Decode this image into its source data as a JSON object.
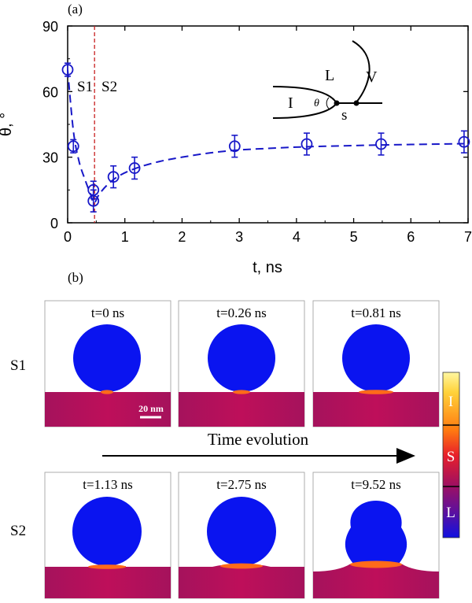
{
  "chart_data": {
    "type": "scatter",
    "panel_label": "(a)",
    "xlabel": "t, ns",
    "ylabel": "θ, °",
    "xlim": [
      0,
      7
    ],
    "ylim": [
      0,
      90
    ],
    "xticks": [
      "0",
      "1",
      "2",
      "3",
      "4",
      "5",
      "6",
      "7"
    ],
    "yticks": [
      "0",
      "30",
      "60",
      "90"
    ],
    "points": [
      {
        "x": 0.0,
        "y": 70,
        "err": 3
      },
      {
        "x": 0.1,
        "y": 35,
        "err": 3
      },
      {
        "x": 0.45,
        "y": 15,
        "err": 4
      },
      {
        "x": 0.45,
        "y": 10,
        "err": 5
      },
      {
        "x": 0.8,
        "y": 21,
        "err": 5
      },
      {
        "x": 1.17,
        "y": 25,
        "err": 5
      },
      {
        "x": 2.92,
        "y": 35,
        "err": 5
      },
      {
        "x": 4.18,
        "y": 36,
        "err": 5
      },
      {
        "x": 5.48,
        "y": 36,
        "err": 5
      },
      {
        "x": 6.93,
        "y": 37,
        "err": 5
      }
    ],
    "fit_curve": [
      [
        0,
        70
      ],
      [
        0.1,
        42
      ],
      [
        0.2,
        28
      ],
      [
        0.3,
        20
      ],
      [
        0.4,
        13
      ],
      [
        0.46,
        9
      ],
      [
        0.55,
        13
      ],
      [
        0.7,
        17.5
      ],
      [
        0.9,
        21.5
      ],
      [
        1.2,
        25
      ],
      [
        1.6,
        28
      ],
      [
        2.0,
        30
      ],
      [
        2.5,
        32
      ],
      [
        3.0,
        33.3
      ],
      [
        3.5,
        34
      ],
      [
        4.0,
        34.6
      ],
      [
        4.5,
        35
      ],
      [
        5.0,
        35.3
      ],
      [
        5.5,
        35.6
      ],
      [
        6.0,
        35.8
      ],
      [
        6.5,
        36
      ],
      [
        6.93,
        36.2
      ]
    ],
    "separator_x": 0.47,
    "region_labels": [
      "S1",
      "S2"
    ],
    "inset_labels": {
      "liquid": "L",
      "vapor": "V",
      "inner": "I",
      "solid": "s",
      "angle": "θ"
    },
    "colors": {
      "series": "#1818c8",
      "separator": "#c82020"
    }
  },
  "panel_b": {
    "label": "(b)",
    "rows": [
      {
        "label": "S1",
        "frames": [
          "t=0 ns",
          "t=0.26 ns",
          "t=0.81 ns"
        ]
      },
      {
        "label": "S2",
        "frames": [
          "t=1.13 ns",
          "t=2.75 ns",
          "t=9.52 ns"
        ]
      }
    ],
    "scale_bar": "20 nm",
    "time_arrow": "Time evolution",
    "colorbar_labels": [
      "I",
      "S",
      "L"
    ],
    "colors": {
      "droplet": "#0a14f0",
      "substrate": "#b8105a",
      "interface": "#ff6a1a"
    }
  }
}
